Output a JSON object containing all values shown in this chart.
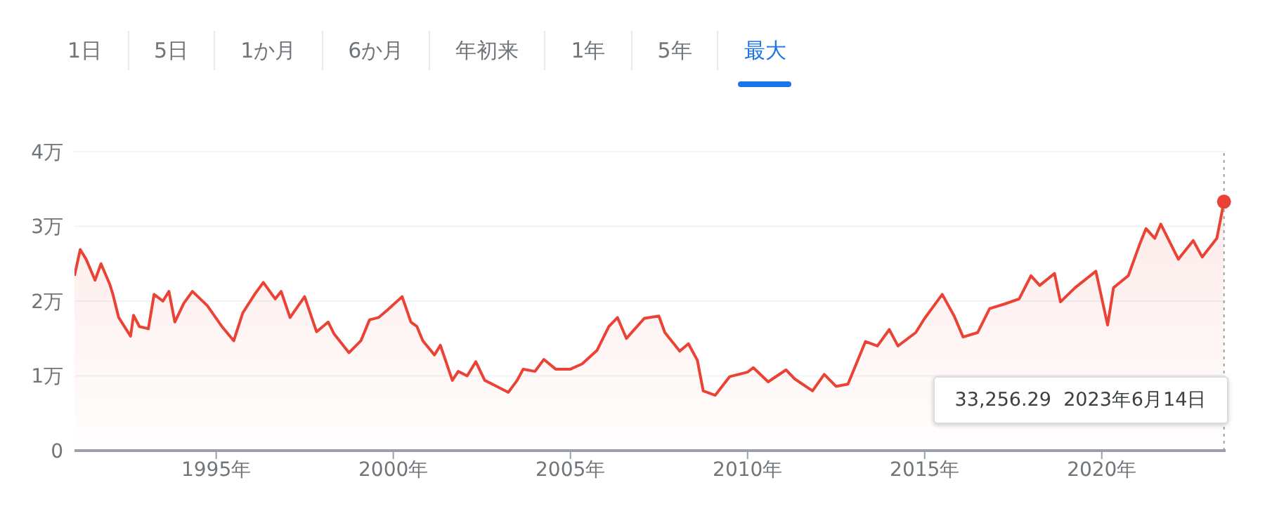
{
  "chart_data": {
    "type": "area",
    "color": "#ea4335",
    "grid": "y",
    "marker": "none",
    "line_style": "solid",
    "annotations": [
      "1日",
      "5日",
      "1か月",
      "6か月",
      "年初来",
      "1年",
      "5年",
      "最大",
      "33,256.29  2023年6月14日"
    ],
    "xlim": [
      "1991-01",
      "2023-07"
    ],
    "xticks": [
      {
        "value": "1995",
        "label": "1995年"
      },
      {
        "value": "2000",
        "label": "2000年"
      },
      {
        "value": "2005",
        "label": "2005年"
      },
      {
        "value": "2010",
        "label": "2010年"
      },
      {
        "value": "2015",
        "label": "2015年"
      },
      {
        "value": "2020",
        "label": "2020年"
      }
    ],
    "ylim": [
      0,
      4
    ],
    "yticks": [
      0,
      {
        "value": 1,
        "label": "1万"
      },
      {
        "value": 2,
        "label": "2万"
      },
      {
        "value": 3,
        "label": "3万"
      },
      {
        "value": 4,
        "label": "4万"
      }
    ],
    "ref_lines": [
      {
        "axis": "x",
        "value": "2023-06-14",
        "label": null,
        "color": "#9aa0a6",
        "line_style": "dotted"
      }
    ],
    "x": [
      "1991-01",
      "1991-03",
      "1991-05",
      "1991-08",
      "1991-10",
      "1992-01",
      "1992-02",
      "1992-04",
      "1992-08",
      "1992-09",
      "1992-11",
      "1993-02",
      "1993-04",
      "1993-07",
      "1993-09",
      "1993-11",
      "1994-02",
      "1994-05",
      "1994-10",
      "1995-03",
      "1995-07",
      "1995-10",
      "1996-02",
      "1996-05",
      "1996-09",
      "1996-11",
      "1997-02",
      "1997-07",
      "1997-11",
      "1998-03",
      "1998-05",
      "1998-10",
      "1999-02",
      "1999-05",
      "1999-08",
      "1999-11",
      "2000-04",
      "2000-07",
      "2000-09",
      "2000-11",
      "2001-03",
      "2001-05",
      "2001-09",
      "2001-11",
      "2002-02",
      "2002-05",
      "2002-08",
      "2002-11",
      "2003-04",
      "2003-07",
      "2003-09",
      "2004-01",
      "2004-04",
      "2004-08",
      "2005-01",
      "2005-05",
      "2005-10",
      "2006-02",
      "2006-05",
      "2006-08",
      "2006-10",
      "2007-02",
      "2007-07",
      "2007-09",
      "2008-02",
      "2008-05",
      "2008-08",
      "2008-10",
      "2009-02",
      "2009-07",
      "2010-01",
      "2010-03",
      "2010-08",
      "2011-02",
      "2011-05",
      "2011-11",
      "2012-03",
      "2012-07",
      "2012-11",
      "2013-05",
      "2013-09",
      "2014-01",
      "2014-04",
      "2014-10",
      "2015-01",
      "2015-07",
      "2015-11",
      "2016-02",
      "2016-07",
      "2016-11",
      "2017-04",
      "2017-09",
      "2018-01",
      "2018-04",
      "2018-09",
      "2018-11",
      "2019-04",
      "2019-11",
      "2020-03",
      "2020-05",
      "2020-10",
      "2021-02",
      "2021-04",
      "2021-07",
      "2021-09",
      "2022-03",
      "2022-08",
      "2022-11",
      "2023-04",
      "2023-06-14"
    ],
    "values": [
      2.34,
      2.69,
      2.56,
      2.28,
      2.5,
      2.22,
      2.09,
      1.78,
      1.53,
      1.81,
      1.66,
      1.63,
      2.09,
      2.0,
      2.13,
      1.72,
      1.97,
      2.13,
      1.94,
      1.66,
      1.47,
      1.84,
      2.09,
      2.25,
      2.03,
      2.13,
      1.78,
      2.06,
      1.59,
      1.72,
      1.56,
      1.31,
      1.47,
      1.75,
      1.78,
      1.88,
      2.06,
      1.72,
      1.66,
      1.47,
      1.28,
      1.41,
      0.94,
      1.06,
      1.0,
      1.19,
      0.94,
      0.88,
      0.78,
      0.94,
      1.09,
      1.06,
      1.22,
      1.09,
      1.09,
      1.16,
      1.34,
      1.66,
      1.78,
      1.5,
      1.59,
      1.77,
      1.8,
      1.58,
      1.33,
      1.43,
      1.21,
      0.8,
      0.74,
      0.99,
      1.05,
      1.11,
      0.92,
      1.08,
      0.96,
      0.8,
      1.02,
      0.86,
      0.89,
      1.46,
      1.4,
      1.62,
      1.4,
      1.58,
      1.77,
      2.09,
      1.8,
      1.52,
      1.58,
      1.9,
      1.96,
      2.03,
      2.34,
      2.21,
      2.37,
      1.99,
      2.18,
      2.4,
      1.68,
      2.18,
      2.34,
      2.78,
      2.97,
      2.84,
      3.03,
      2.56,
      2.81,
      2.59,
      2.84,
      3.33
    ]
  }
}
